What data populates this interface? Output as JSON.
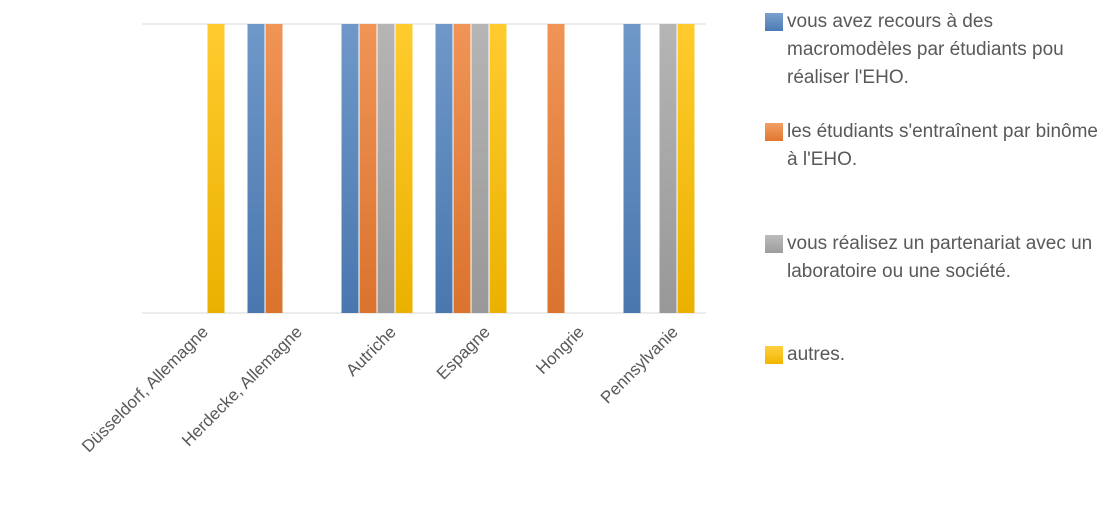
{
  "chart_data": {
    "type": "bar",
    "categories": [
      "Düsseldorf, Allemagne",
      "Herdecke, Allemagne",
      "Autriche",
      "Espagne",
      "Hongrie",
      "Pennsylvanie"
    ],
    "series": [
      {
        "name": "vous avez recours à des macromodèles par étudiants pou réaliser l'EHO.",
        "color": "#4f81bd",
        "values": [
          0,
          1,
          1,
          1,
          0,
          1
        ]
      },
      {
        "name": "les étudiants s'entraînent par binôme à l'EHO.",
        "color": "#ed7d31",
        "values": [
          0,
          1,
          1,
          1,
          1,
          0
        ]
      },
      {
        "name": "vous réalisez un partenariat avec un laboratoire ou une société.",
        "color": "#a5a5a5",
        "values": [
          0,
          0,
          1,
          1,
          0,
          1
        ]
      },
      {
        "name": "autres.",
        "color": "#ffc000",
        "values": [
          1,
          0,
          1,
          1,
          0,
          1
        ]
      }
    ],
    "ylim": [
      0,
      1
    ],
    "grid": true,
    "legend_position": "right"
  }
}
